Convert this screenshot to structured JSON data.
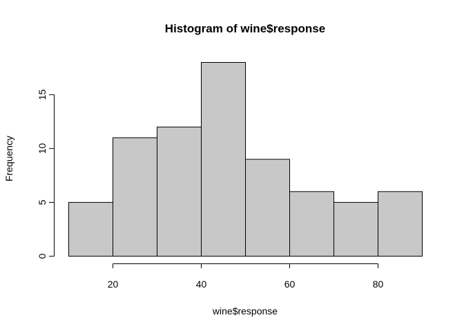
{
  "chart_data": {
    "type": "bar",
    "subtype": "histogram",
    "title": "Histogram of wine$response",
    "xlabel": "wine$response",
    "ylabel": "Frequency",
    "bins": [
      {
        "start": 10,
        "end": 20,
        "count": 5
      },
      {
        "start": 20,
        "end": 30,
        "count": 11
      },
      {
        "start": 30,
        "end": 40,
        "count": 12
      },
      {
        "start": 40,
        "end": 50,
        "count": 18
      },
      {
        "start": 50,
        "end": 60,
        "count": 9
      },
      {
        "start": 60,
        "end": 70,
        "count": 6
      },
      {
        "start": 70,
        "end": 80,
        "count": 5
      },
      {
        "start": 80,
        "end": 90,
        "count": 6
      }
    ],
    "xlim": [
      10,
      90
    ],
    "ylim": [
      0,
      18
    ],
    "xticks": [
      20,
      40,
      60,
      80
    ],
    "yticks": [
      0,
      5,
      10,
      15
    ],
    "bar_color": "#c8c8c8",
    "edge_color": "#000000",
    "grid": false
  }
}
